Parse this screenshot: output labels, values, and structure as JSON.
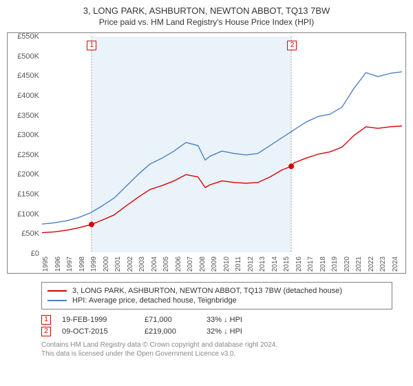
{
  "title": "3, LONG PARK, ASHBURTON, NEWTON ABBOT, TQ13 7BW",
  "subtitle": "Price paid vs. HM Land Registry's House Price Index (HPI)",
  "chart": {
    "type": "line",
    "background_color": "#ffffff",
    "border_color": "#808080",
    "highlight_band_color": "#eaf3fa",
    "grid_dash_color": "#888888",
    "x_years": [
      1995,
      1996,
      1997,
      1998,
      1999,
      2000,
      2001,
      2002,
      2003,
      2004,
      2005,
      2006,
      2007,
      2008,
      2009,
      2010,
      2011,
      2012,
      2013,
      2014,
      2015,
      2016,
      2017,
      2018,
      2019,
      2020,
      2021,
      2022,
      2023,
      2024
    ],
    "xlim": [
      1995,
      2025
    ],
    "ylim": [
      0,
      550000
    ],
    "ytick_step": 50000,
    "yticks": [
      "£0",
      "£50K",
      "£100K",
      "£150K",
      "£200K",
      "£250K",
      "£300K",
      "£350K",
      "£400K",
      "£450K",
      "£500K",
      "£550K"
    ],
    "label_fontsize": 11,
    "line_width": 1.4,
    "highlight_band": {
      "start": 1999.13,
      "end": 2015.77
    },
    "series": [
      {
        "name": "property",
        "label": "3, LONG PARK, ASHBURTON, NEWTON ABBOT, TQ13 7BW (detached house)",
        "color": "#d80000",
        "points": [
          [
            1995,
            50000
          ],
          [
            1996,
            52000
          ],
          [
            1997,
            56000
          ],
          [
            1998,
            62000
          ],
          [
            1999.13,
            71000
          ],
          [
            2000,
            82000
          ],
          [
            2001,
            95000
          ],
          [
            2002,
            118000
          ],
          [
            2003,
            140000
          ],
          [
            2004,
            160000
          ],
          [
            2005,
            170000
          ],
          [
            2006,
            182000
          ],
          [
            2007,
            198000
          ],
          [
            2008,
            192000
          ],
          [
            2008.6,
            165000
          ],
          [
            2009,
            172000
          ],
          [
            2010,
            182000
          ],
          [
            2011,
            178000
          ],
          [
            2012,
            176000
          ],
          [
            2013,
            178000
          ],
          [
            2014,
            192000
          ],
          [
            2015,
            210000
          ],
          [
            2015.77,
            219000
          ],
          [
            2016,
            228000
          ],
          [
            2017,
            240000
          ],
          [
            2018,
            250000
          ],
          [
            2019,
            256000
          ],
          [
            2020,
            268000
          ],
          [
            2021,
            298000
          ],
          [
            2022,
            320000
          ],
          [
            2023,
            316000
          ],
          [
            2024,
            320000
          ],
          [
            2025,
            322000
          ]
        ]
      },
      {
        "name": "hpi",
        "label": "HPI: Average price, detached house, Teignbridge",
        "color": "#4a7fc4",
        "points": [
          [
            1995,
            72000
          ],
          [
            1996,
            75000
          ],
          [
            1997,
            80000
          ],
          [
            1998,
            88000
          ],
          [
            1999,
            100000
          ],
          [
            2000,
            118000
          ],
          [
            2001,
            138000
          ],
          [
            2002,
            168000
          ],
          [
            2003,
            198000
          ],
          [
            2004,
            225000
          ],
          [
            2005,
            240000
          ],
          [
            2006,
            258000
          ],
          [
            2007,
            280000
          ],
          [
            2008,
            272000
          ],
          [
            2008.6,
            235000
          ],
          [
            2009,
            245000
          ],
          [
            2010,
            258000
          ],
          [
            2011,
            252000
          ],
          [
            2012,
            248000
          ],
          [
            2013,
            252000
          ],
          [
            2014,
            272000
          ],
          [
            2015,
            292000
          ],
          [
            2016,
            312000
          ],
          [
            2017,
            332000
          ],
          [
            2018,
            346000
          ],
          [
            2019,
            352000
          ],
          [
            2020,
            370000
          ],
          [
            2021,
            418000
          ],
          [
            2022,
            458000
          ],
          [
            2023,
            448000
          ],
          [
            2024,
            456000
          ],
          [
            2025,
            460000
          ]
        ]
      }
    ],
    "markers": [
      {
        "id": "1",
        "x": 1999.13,
        "y": 71000,
        "color": "#d80000"
      },
      {
        "id": "2",
        "x": 2015.77,
        "y": 219000,
        "color": "#d80000"
      }
    ],
    "marker_dot_radius": 4
  },
  "legend": {
    "border_color": "#808080",
    "items": [
      {
        "color": "#d80000",
        "label": "3, LONG PARK, ASHBURTON, NEWTON ABBOT, TQ13 7BW (detached house)"
      },
      {
        "color": "#4a7fc4",
        "label": "HPI: Average price, detached house, Teignbridge"
      }
    ]
  },
  "marker_table": {
    "rows": [
      {
        "id": "1",
        "color": "#d80000",
        "date": "19-FEB-1999",
        "price": "£71,000",
        "pct": "33% ↓ HPI"
      },
      {
        "id": "2",
        "color": "#d80000",
        "date": "09-OCT-2015",
        "price": "£219,000",
        "pct": "32% ↓ HPI"
      }
    ]
  },
  "footer": {
    "line1": "Contains HM Land Registry data © Crown copyright and database right 2024.",
    "line2": "This data is licensed under the Open Government Licence v3.0."
  }
}
